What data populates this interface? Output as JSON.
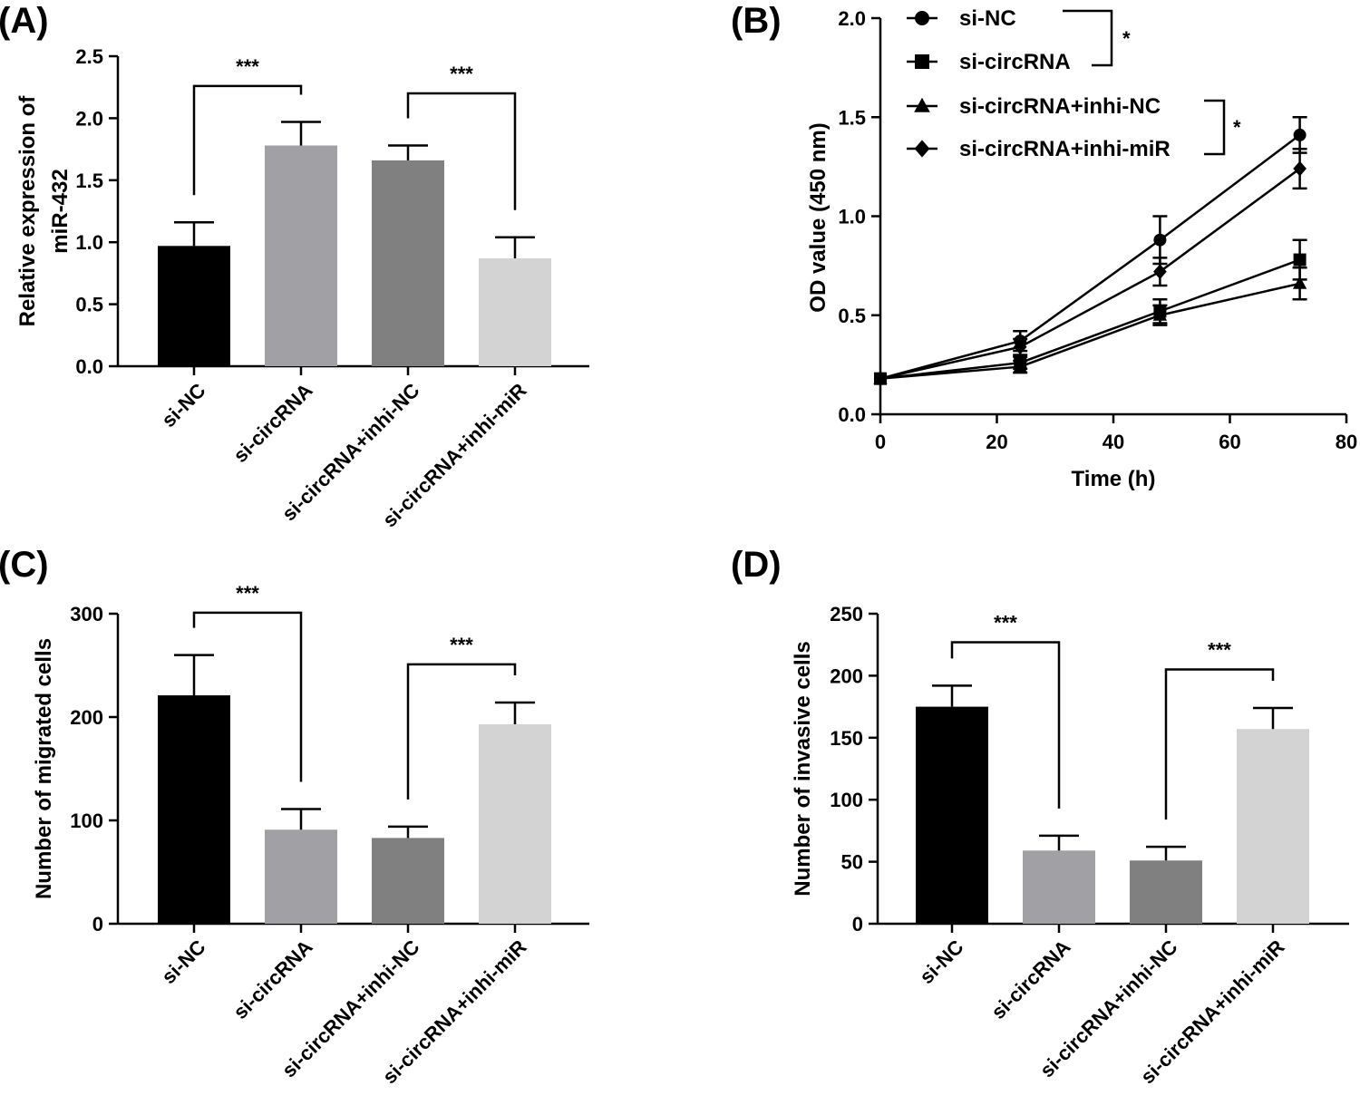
{
  "chart_data": [
    {
      "panel": "(A)",
      "type": "bar",
      "ylabel": [
        "Relative expression of",
        "miR-432"
      ],
      "categories": [
        "si-NC",
        "si-circRNA",
        "si-circRNA+inhi-NC",
        "si-circRNA+inhi-miR"
      ],
      "values": [
        0.97,
        1.78,
        1.66,
        0.87
      ],
      "errors": [
        0.19,
        0.19,
        0.12,
        0.17
      ],
      "colors": [
        "#000000",
        "#a0a0a5",
        "#808080",
        "#d3d3d3"
      ],
      "ylim": [
        0,
        2.5
      ],
      "yticks": [
        "0.0",
        "0.5",
        "1.0",
        "1.5",
        "2.0",
        "2.5"
      ],
      "significance": [
        {
          "from": 0,
          "to": 1,
          "label": "***",
          "level": 2.26
        },
        {
          "from": 2,
          "to": 3,
          "label": "***",
          "level": 2.2
        }
      ]
    },
    {
      "panel": "(B)",
      "type": "line",
      "xlabel": "Time (h)",
      "ylabel": "OD value (450 nm)",
      "xlim": [
        0,
        80
      ],
      "ylim": [
        0,
        2.0
      ],
      "xticks": [
        "0",
        "20",
        "40",
        "60",
        "80"
      ],
      "yticks": [
        "0.0",
        "0.5",
        "1.0",
        "1.5",
        "2.0"
      ],
      "x": [
        0,
        24,
        48,
        72
      ],
      "series": [
        {
          "name": "si-NC",
          "marker": "circle",
          "values": [
            0.18,
            0.37,
            0.88,
            1.41
          ],
          "errors": [
            0.02,
            0.05,
            0.12,
            0.09
          ]
        },
        {
          "name": "si-circRNA",
          "marker": "square",
          "values": [
            0.18,
            0.26,
            0.52,
            0.78
          ],
          "errors": [
            0.02,
            0.03,
            0.06,
            0.1
          ]
        },
        {
          "name": "si-circRNA+inhi-NC",
          "marker": "triangle",
          "values": [
            0.18,
            0.24,
            0.5,
            0.66
          ],
          "errors": [
            0.02,
            0.03,
            0.05,
            0.08
          ]
        },
        {
          "name": "si-circRNA+inhi-miR",
          "marker": "diamond",
          "values": [
            0.18,
            0.34,
            0.72,
            1.24
          ],
          "errors": [
            0.02,
            0.04,
            0.07,
            0.1
          ]
        }
      ],
      "legend_placement": "top-left",
      "significance": [
        {
          "label": "*",
          "pair": [
            "si-NC",
            "si-circRNA"
          ]
        },
        {
          "label": "*",
          "pair": [
            "si-circRNA+inhi-NC",
            "si-circRNA+inhi-miR"
          ]
        }
      ]
    },
    {
      "panel": "(C)",
      "type": "bar",
      "ylabel": [
        "Number of migrated cells"
      ],
      "categories": [
        "si-NC",
        "si-circRNA",
        "si-circRNA+inhi-NC",
        "si-circRNA+inhi-miR"
      ],
      "values": [
        221,
        91,
        83,
        193
      ],
      "errors": [
        39,
        20,
        11,
        21
      ],
      "colors": [
        "#000000",
        "#a0a0a5",
        "#808080",
        "#d3d3d3"
      ],
      "ylim": [
        0,
        300
      ],
      "yticks": [
        "0",
        "100",
        "200",
        "300"
      ],
      "significance": [
        {
          "from": 0,
          "to": 1,
          "label": "***",
          "level": 301
        },
        {
          "from": 2,
          "to": 3,
          "label": "***",
          "level": 251
        }
      ]
    },
    {
      "panel": "(D)",
      "type": "bar",
      "ylabel": [
        "Number of invasive cells"
      ],
      "categories": [
        "si-NC",
        "si-circRNA",
        "si-circRNA+inhi-NC",
        "si-circRNA+inhi-miR"
      ],
      "values": [
        175,
        59,
        51,
        157
      ],
      "errors": [
        17,
        12,
        11,
        17
      ],
      "colors": [
        "#000000",
        "#a0a0a5",
        "#808080",
        "#d3d3d3"
      ],
      "ylim": [
        0,
        250
      ],
      "yticks": [
        "0",
        "50",
        "100",
        "150",
        "200",
        "250"
      ],
      "significance": [
        {
          "from": 0,
          "to": 1,
          "label": "***",
          "level": 227
        },
        {
          "from": 2,
          "to": 3,
          "label": "***",
          "level": 205
        }
      ]
    }
  ]
}
